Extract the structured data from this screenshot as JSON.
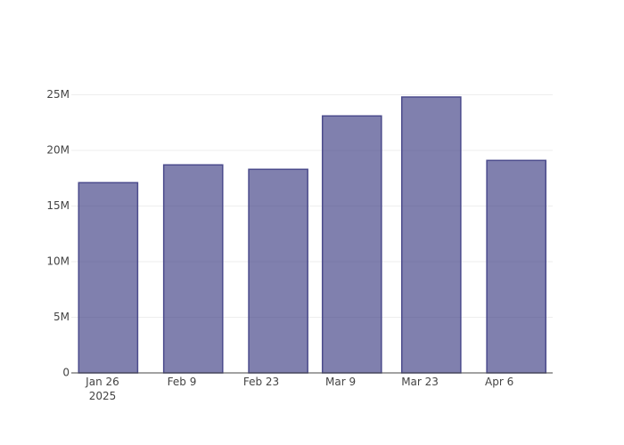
{
  "chart_data": {
    "type": "bar",
    "x": [
      "2025-01-27",
      "2025-02-11",
      "2025-02-26",
      "2025-03-11",
      "2025-03-25",
      "2025-04-09"
    ],
    "values": [
      17100000,
      18700000,
      18300000,
      23100000,
      24800000,
      19100000
    ],
    "color": "rgba(60,60,130,0.65)",
    "line_color": "#4b4b8c",
    "xlim": [
      "2025-01-20T12:00",
      "2025-04-15T10:00"
    ],
    "xticks": [
      {
        "value": "2025-01-26",
        "label": "Jan 26\n2025"
      },
      {
        "value": "2025-02-09",
        "label": "Feb 9"
      },
      {
        "value": "2025-02-23",
        "label": "Feb 23"
      },
      {
        "value": "2025-03-09",
        "label": "Mar 9"
      },
      {
        "value": "2025-03-23",
        "label": "Mar 23"
      },
      {
        "value": "2025-04-06",
        "label": "Apr 6"
      }
    ],
    "ylim": [
      0,
      26000000
    ],
    "yticks": [
      0,
      {
        "value": 5000000,
        "label": "5M"
      },
      {
        "value": 10000000,
        "label": "10M"
      },
      {
        "value": 15000000,
        "label": "15M"
      },
      {
        "value": 20000000,
        "label": "20M"
      },
      {
        "value": 25000000,
        "label": "25M"
      }
    ],
    "grid": true
  }
}
